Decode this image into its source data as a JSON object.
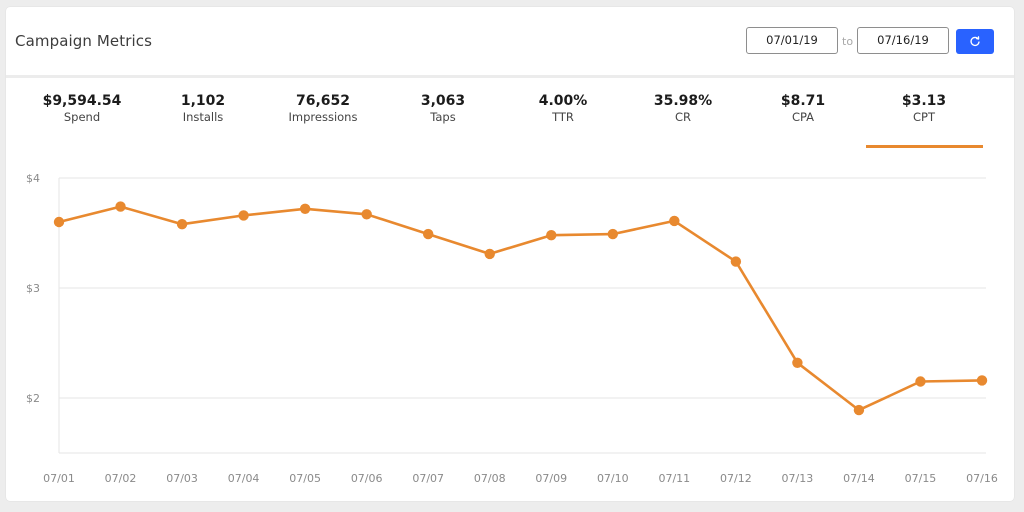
{
  "header": {
    "title": "Campaign Metrics",
    "date_from": "07/01/19",
    "to_label": "to",
    "date_to": "07/16/19"
  },
  "metrics": [
    {
      "value": "$9,594.54",
      "label": "Spend"
    },
    {
      "value": "1,102",
      "label": "Installs"
    },
    {
      "value": "76,652",
      "label": "Impressions"
    },
    {
      "value": "3,063",
      "label": "Taps"
    },
    {
      "value": "4.00%",
      "label": "TTR"
    },
    {
      "value": "35.98%",
      "label": "CR"
    },
    {
      "value": "$8.71",
      "label": "CPA"
    },
    {
      "value": "$3.13",
      "label": "CPT"
    }
  ],
  "selected_metric": "CPT",
  "colors": {
    "line": "#e8892f",
    "accent": "#2962ff",
    "grid": "#e6e6e6"
  },
  "chart_data": {
    "type": "line",
    "x": [
      "07/01",
      "07/02",
      "07/03",
      "07/04",
      "07/05",
      "07/06",
      "07/07",
      "07/08",
      "07/09",
      "07/10",
      "07/11",
      "07/12",
      "07/13",
      "07/14",
      "07/15",
      "07/16"
    ],
    "series": [
      {
        "values": [
          3.6,
          3.74,
          3.58,
          3.66,
          3.72,
          3.67,
          3.49,
          3.31,
          3.48,
          3.49,
          3.61,
          3.24,
          2.32,
          1.89,
          2.15,
          2.16
        ]
      }
    ],
    "ylim": [
      1.5,
      4
    ],
    "y_ticks": [
      {
        "value": 4,
        "label": "$4"
      },
      {
        "value": 3,
        "label": "$3"
      },
      {
        "value": 2,
        "label": "$2"
      }
    ],
    "grid": true,
    "markers": true
  }
}
